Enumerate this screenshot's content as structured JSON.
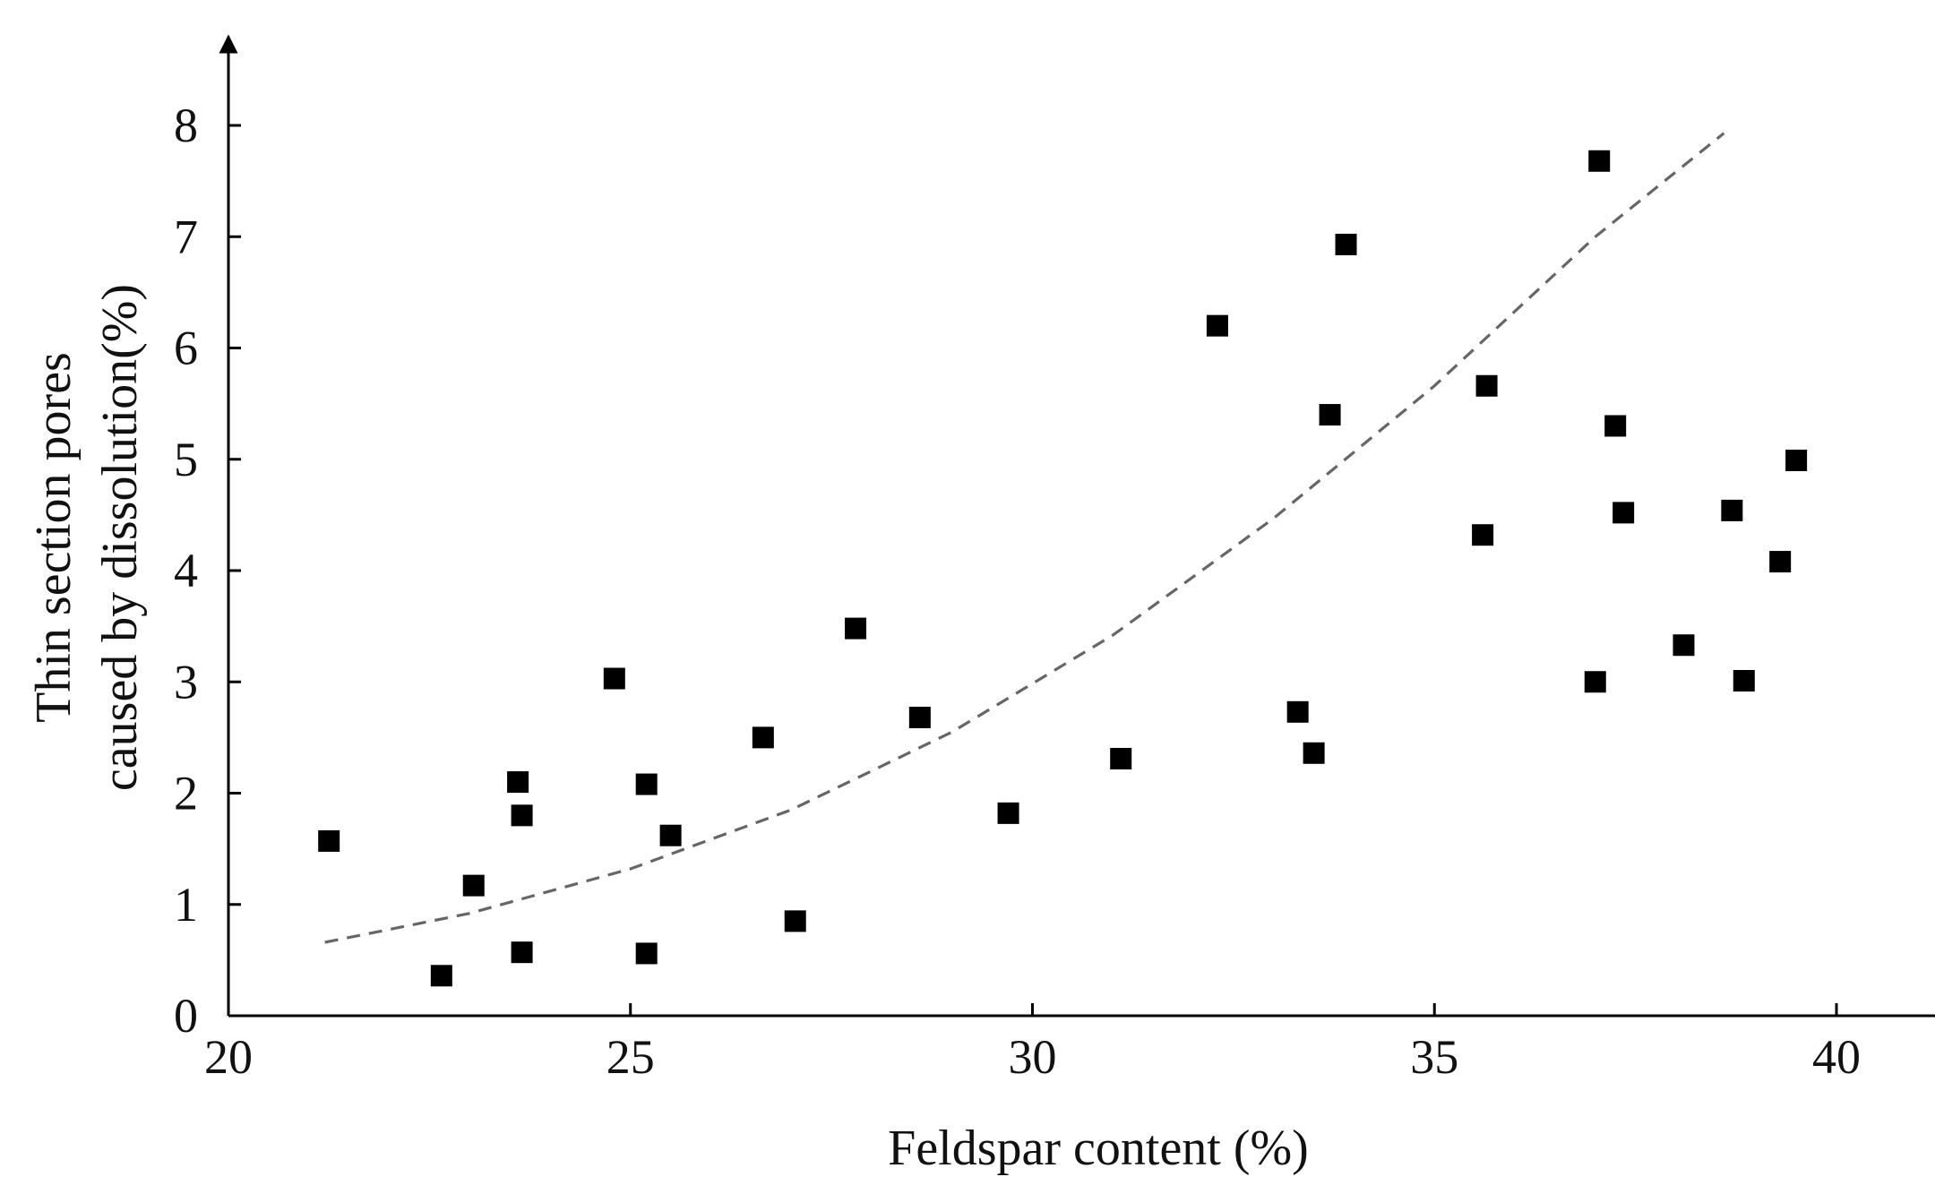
{
  "chart_data": {
    "type": "scatter",
    "xlabel": "Feldspar content (%)",
    "ylabel_lines": [
      "Thin section pores",
      "caused by dissolution(%)"
    ],
    "xlim": [
      20,
      41.5
    ],
    "ylim": [
      0,
      8.8
    ],
    "xticks": [
      20,
      25,
      30,
      35,
      40
    ],
    "yticks": [
      0,
      1,
      2,
      3,
      4,
      5,
      6,
      7,
      8
    ],
    "grid": false,
    "legend": "none",
    "marker": "square",
    "marker_color": "#000000",
    "trend_color": "#666666",
    "points": [
      {
        "x": 21.25,
        "y": 1.57
      },
      {
        "x": 22.65,
        "y": 0.36
      },
      {
        "x": 23.05,
        "y": 1.17
      },
      {
        "x": 23.6,
        "y": 2.1
      },
      {
        "x": 23.65,
        "y": 1.8
      },
      {
        "x": 23.65,
        "y": 0.57
      },
      {
        "x": 24.8,
        "y": 3.03
      },
      {
        "x": 25.2,
        "y": 2.08
      },
      {
        "x": 25.2,
        "y": 0.56
      },
      {
        "x": 25.5,
        "y": 1.62
      },
      {
        "x": 26.65,
        "y": 2.5
      },
      {
        "x": 27.05,
        "y": 0.85
      },
      {
        "x": 27.8,
        "y": 3.48
      },
      {
        "x": 28.6,
        "y": 2.68
      },
      {
        "x": 29.7,
        "y": 1.82
      },
      {
        "x": 31.1,
        "y": 2.31
      },
      {
        "x": 32.3,
        "y": 6.2
      },
      {
        "x": 33.3,
        "y": 2.73
      },
      {
        "x": 33.5,
        "y": 2.36
      },
      {
        "x": 33.7,
        "y": 5.4
      },
      {
        "x": 33.9,
        "y": 6.93
      },
      {
        "x": 35.6,
        "y": 4.32
      },
      {
        "x": 35.65,
        "y": 5.66
      },
      {
        "x": 37.0,
        "y": 3.0
      },
      {
        "x": 37.05,
        "y": 7.68
      },
      {
        "x": 37.25,
        "y": 5.3
      },
      {
        "x": 37.35,
        "y": 4.52
      },
      {
        "x": 38.1,
        "y": 3.33
      },
      {
        "x": 38.7,
        "y": 4.54
      },
      {
        "x": 38.85,
        "y": 3.01
      },
      {
        "x": 39.3,
        "y": 4.08
      },
      {
        "x": 39.5,
        "y": 4.99
      }
    ],
    "trendline": {
      "style": "dashed",
      "x_range": [
        21.2,
        38.6
      ],
      "points": [
        {
          "x": 21.2,
          "y": 0.66
        },
        {
          "x": 23.0,
          "y": 0.92
        },
        {
          "x": 25.0,
          "y": 1.32
        },
        {
          "x": 27.0,
          "y": 1.85
        },
        {
          "x": 29.0,
          "y": 2.55
        },
        {
          "x": 31.0,
          "y": 3.42
        },
        {
          "x": 33.0,
          "y": 4.47
        },
        {
          "x": 35.0,
          "y": 5.66
        },
        {
          "x": 37.0,
          "y": 7.0
        },
        {
          "x": 38.6,
          "y": 7.93
        }
      ]
    }
  }
}
